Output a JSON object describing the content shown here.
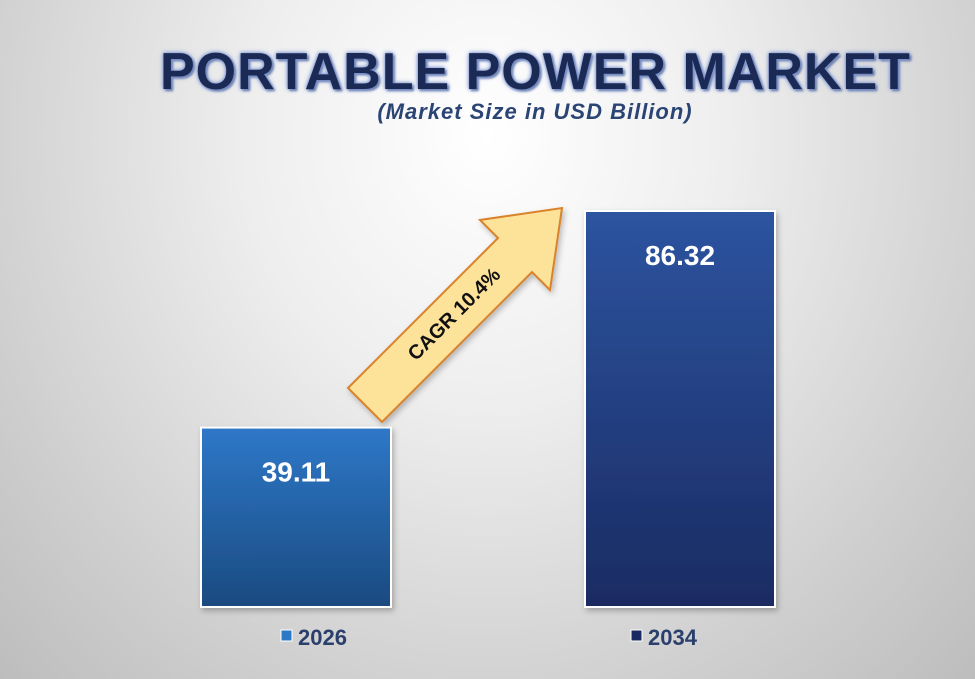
{
  "chart_data": {
    "type": "bar",
    "title": "PORTABLE POWER MARKET",
    "subtitle": "(Market Size in USD Billion)",
    "categories": [
      "2026",
      "2034"
    ],
    "values": [
      39.11,
      86.32
    ],
    "value_labels": [
      "39.11",
      "86.32"
    ],
    "legend": [
      "2026",
      "2034"
    ],
    "legend_placement": "bottom",
    "annotation": "CAGR 10.4%",
    "colors": {
      "bar_2026_top": "#2e78c8",
      "bar_2026_bottom": "#1a4a80",
      "bar_2034_top": "#2d54a0",
      "bar_2034_bottom": "#1a2b62",
      "arrow_fill": "#fde29a",
      "arrow_stroke": "#d9822b",
      "title": "#1b2a55"
    },
    "grid": false
  }
}
